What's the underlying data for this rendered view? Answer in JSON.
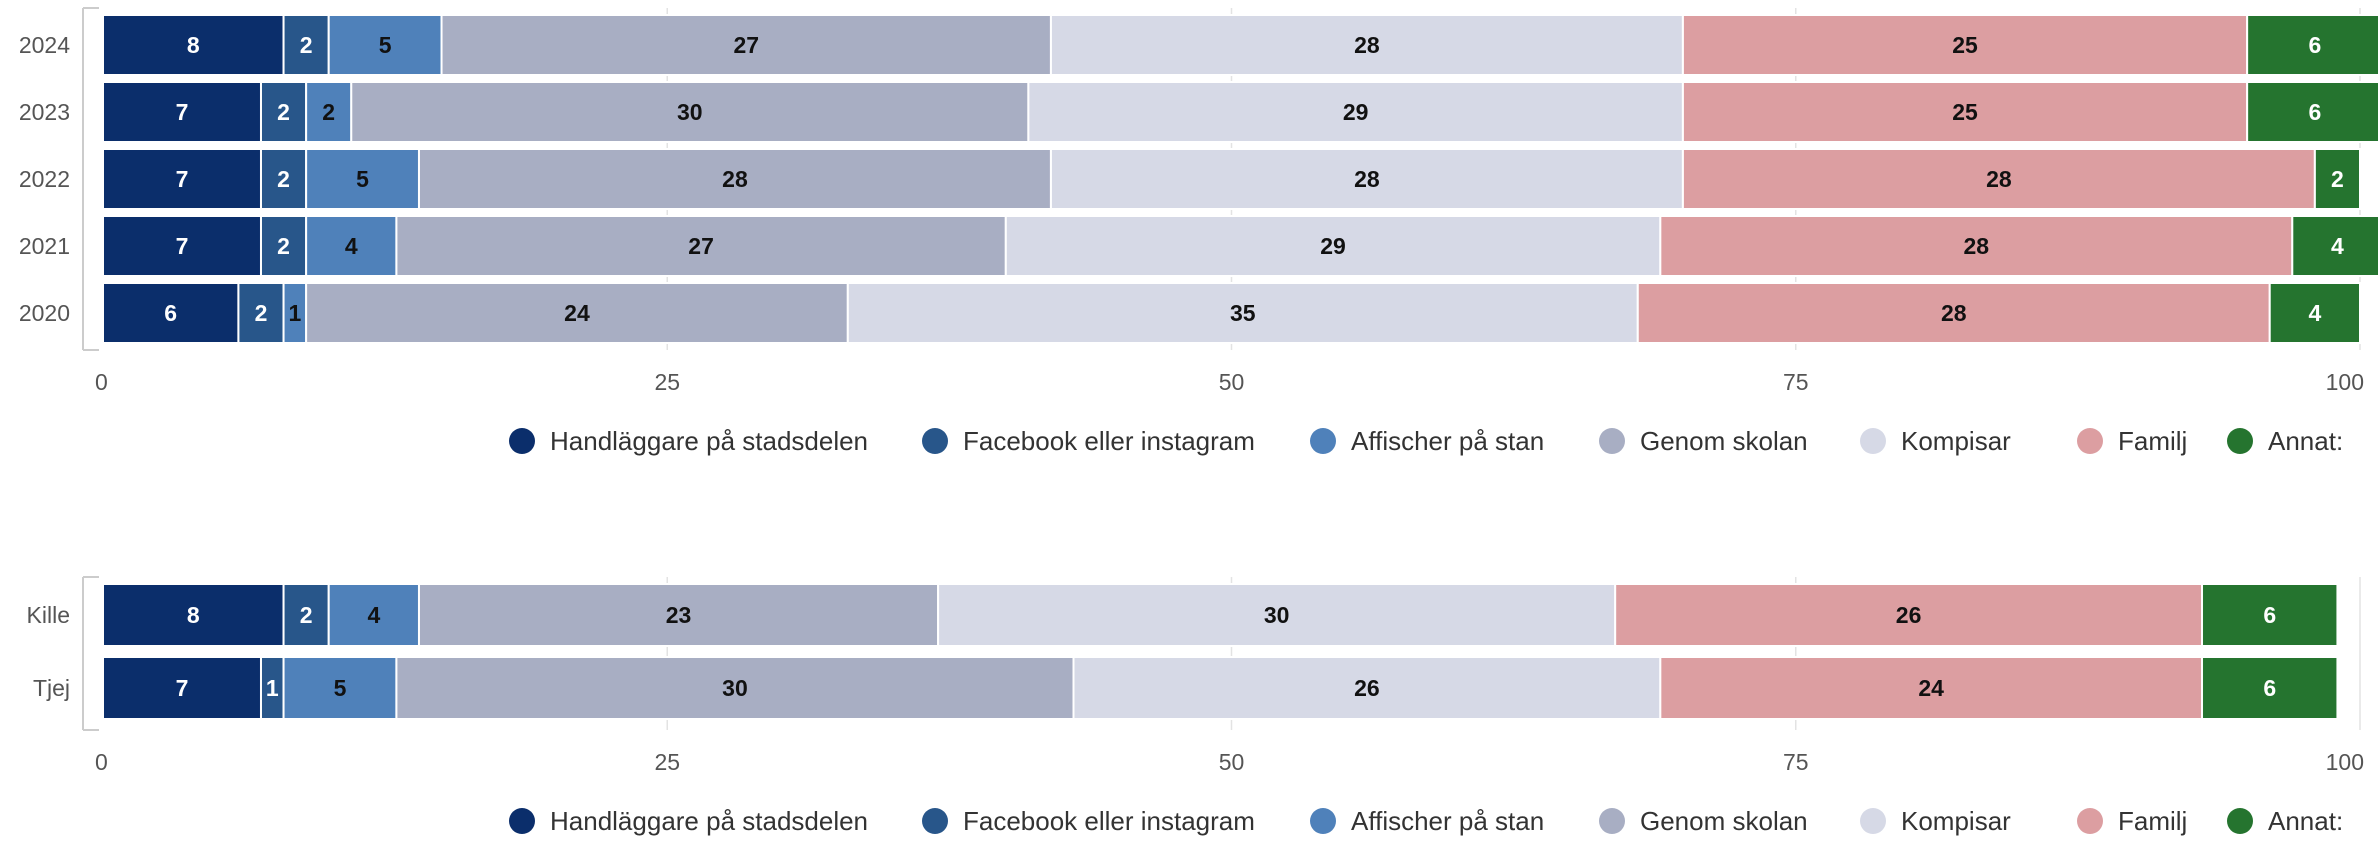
{
  "colors": [
    "#0b2e6b",
    "#28568a",
    "#4f81ba",
    "#a8aec3",
    "#d6d9e6",
    "#dc9ea1",
    "#25742f"
  ],
  "label_colors": [
    "#ffffff",
    "#ffffff",
    "#111111",
    "#111111",
    "#111111",
    "#111111",
    "#ffffff"
  ],
  "chart_data": [
    {
      "type": "bar",
      "orientation": "horizontal",
      "stacked": true,
      "categories": [
        "2024",
        "2023",
        "2022",
        "2021",
        "2020"
      ],
      "xlim": [
        0,
        100
      ],
      "xticks": [
        "0",
        "25",
        "50",
        "75",
        "100"
      ],
      "legend_position": "bottom",
      "series": [
        {
          "name": "Handläggare på stadsdelen",
          "values": [
            8,
            7,
            7,
            7,
            6
          ]
        },
        {
          "name": "Facebook eller instagram",
          "values": [
            2,
            2,
            2,
            2,
            2
          ]
        },
        {
          "name": "Affischer på stan",
          "values": [
            5,
            2,
            5,
            4,
            1
          ]
        },
        {
          "name": "Genom skolan",
          "values": [
            27,
            30,
            28,
            27,
            24
          ]
        },
        {
          "name": "Kompisar",
          "values": [
            28,
            29,
            28,
            29,
            35
          ]
        },
        {
          "name": "Familj",
          "values": [
            25,
            25,
            28,
            28,
            28
          ]
        },
        {
          "name": "Annat:",
          "values": [
            6,
            6,
            2,
            4,
            4
          ]
        }
      ]
    },
    {
      "type": "bar",
      "orientation": "horizontal",
      "stacked": true,
      "categories": [
        "Kille",
        "Tjej"
      ],
      "xlim": [
        0,
        100
      ],
      "xticks": [
        "0",
        "25",
        "50",
        "75",
        "100"
      ],
      "legend_position": "bottom",
      "series": [
        {
          "name": "Handläggare på stadsdelen",
          "values": [
            8,
            7
          ]
        },
        {
          "name": "Facebook eller instagram",
          "values": [
            2,
            1
          ]
        },
        {
          "name": "Affischer på stan",
          "values": [
            4,
            5
          ]
        },
        {
          "name": "Genom skolan",
          "values": [
            23,
            30
          ]
        },
        {
          "name": "Kompisar",
          "values": [
            30,
            26
          ]
        },
        {
          "name": "Familj",
          "values": [
            26,
            24
          ]
        },
        {
          "name": "Annat:",
          "values": [
            6,
            6
          ]
        }
      ]
    }
  ]
}
